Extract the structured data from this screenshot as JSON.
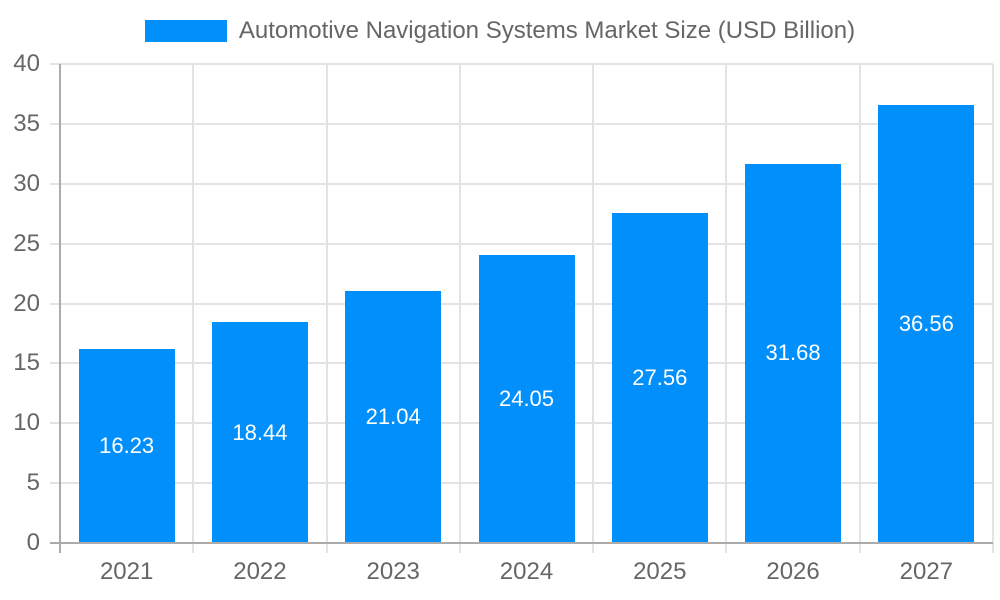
{
  "legend": {
    "series_label": "Automotive Navigation Systems Market Size (USD Billion)"
  },
  "chart_data": {
    "type": "bar",
    "title": "Automotive Navigation Systems Market Size (USD Billion)",
    "categories": [
      "2021",
      "2022",
      "2023",
      "2024",
      "2025",
      "2026",
      "2027"
    ],
    "values": [
      16.23,
      18.44,
      21.04,
      24.05,
      27.56,
      31.68,
      36.56
    ],
    "data_labels": [
      "16.23",
      "18.44",
      "21.04",
      "24.05",
      "27.56",
      "31.68",
      "36.56"
    ],
    "xlabel": "",
    "ylabel": "",
    "ylim": [
      0,
      40
    ],
    "yticks": [
      0,
      5,
      10,
      15,
      20,
      25,
      30,
      35,
      40
    ],
    "grid": true,
    "legend_position": "top",
    "colors": {
      "bar": "#008FFB",
      "grid": "#E3E3E3",
      "axis": "#ABABAB",
      "tick_label": "#666666",
      "data_label": "#FFFFFF",
      "background": "#FFFFFF"
    }
  }
}
